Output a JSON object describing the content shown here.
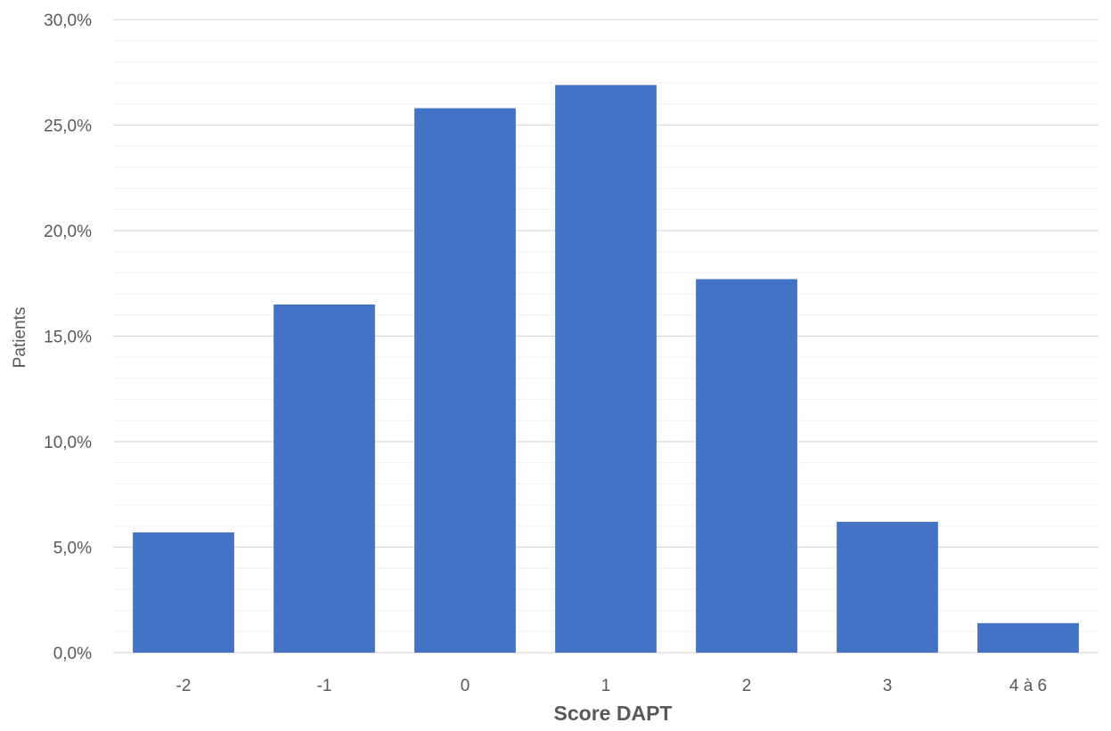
{
  "chart_data": {
    "type": "bar",
    "title": "",
    "xlabel": "Score DAPT",
    "ylabel": "Patients",
    "categories": [
      "-2",
      "-1",
      "0",
      "1",
      "2",
      "3",
      "4 à 6"
    ],
    "values": [
      5.7,
      16.5,
      25.8,
      26.9,
      17.7,
      6.2,
      1.4
    ],
    "ylim": [
      0,
      30
    ],
    "yticks": [
      0,
      5,
      10,
      15,
      20,
      25,
      30
    ],
    "ytick_labels": [
      "0,0%",
      "5,0%",
      "10,0%",
      "15,0%",
      "20,0%",
      "25,0%",
      "30,0%"
    ],
    "grid": true,
    "minor_grid": true,
    "bar_color": "#4472C4",
    "grid_color": "#D9D9D9",
    "minor_grid_color": "#F0F0F0",
    "legend": "none"
  }
}
